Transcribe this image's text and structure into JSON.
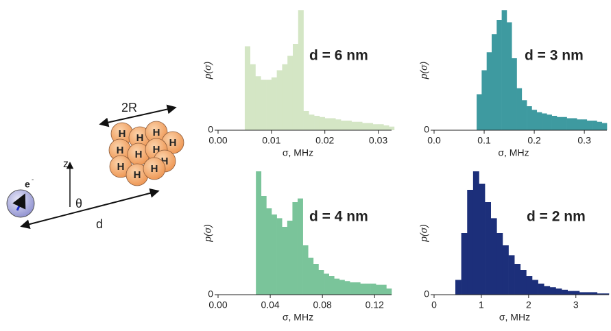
{
  "chart_data": [
    {
      "type": "histogram",
      "annotation": "d = 6 nm",
      "ylabel": "p(σ)",
      "xlabel": "σ, MHz",
      "color": "#d4e6c5",
      "bins": [
        0.005,
        0.006,
        0.007,
        0.008,
        0.009,
        0.01,
        0.011,
        0.012,
        0.013,
        0.014,
        0.015,
        0.016,
        0.017,
        0.018,
        0.019,
        0.02,
        0.021,
        0.022,
        0.023,
        0.024,
        0.025,
        0.026,
        0.027,
        0.028,
        0.029,
        0.03,
        0.031,
        0.032,
        0.033
      ],
      "values": [
        70,
        55,
        45,
        42,
        42,
        44,
        50,
        55,
        62,
        72,
        100,
        16,
        13,
        12,
        11,
        10,
        10,
        9,
        8,
        8,
        7,
        7,
        6,
        6,
        5,
        5,
        4,
        3
      ],
      "xlim": [
        0,
        0.0325
      ],
      "xticks": [
        {
          "value": 0,
          "label": "0.00"
        },
        0.01,
        0.02,
        0.03
      ],
      "ylim": [
        0,
        100
      ],
      "yticks": [
        0
      ]
    },
    {
      "type": "histogram",
      "annotation": "d = 3 nm",
      "ylabel": "p(σ)",
      "xlabel": "σ, MHz",
      "color": "#3e9aa0",
      "bins": [
        0.085,
        0.095,
        0.105,
        0.115,
        0.125,
        0.135,
        0.145,
        0.155,
        0.165,
        0.175,
        0.185,
        0.195,
        0.205,
        0.215,
        0.225,
        0.235,
        0.245,
        0.255,
        0.265,
        0.275,
        0.285,
        0.295,
        0.305,
        0.315,
        0.325,
        0.335,
        0.345
      ],
      "values": [
        30,
        50,
        65,
        80,
        92,
        100,
        90,
        60,
        35,
        25,
        20,
        17,
        15,
        14,
        13,
        12,
        11,
        11,
        10,
        10,
        9,
        9,
        8,
        8,
        7,
        6
      ],
      "xlim": [
        0,
        0.345
      ],
      "xticks": [
        {
          "value": 0,
          "label": "0.0"
        },
        0.1,
        0.2,
        0.3
      ],
      "ylim": [
        0,
        100
      ],
      "yticks": [
        0
      ]
    },
    {
      "type": "histogram",
      "annotation": "d = 4 nm",
      "ylabel": "p(σ)",
      "xlabel": "σ, MHz",
      "color": "#7ac49a",
      "bins": [
        0.029,
        0.033,
        0.037,
        0.041,
        0.045,
        0.049,
        0.053,
        0.057,
        0.061,
        0.065,
        0.069,
        0.073,
        0.077,
        0.081,
        0.085,
        0.089,
        0.093,
        0.097,
        0.101,
        0.105,
        0.109,
        0.113,
        0.117,
        0.121,
        0.125,
        0.129,
        0.133
      ],
      "values": [
        100,
        80,
        70,
        65,
        62,
        55,
        60,
        75,
        78,
        40,
        30,
        25,
        20,
        17,
        15,
        13,
        12,
        11,
        10,
        10,
        9,
        9,
        9,
        8,
        8,
        5
      ],
      "xlim": [
        0,
        0.133
      ],
      "xticks": [
        {
          "value": 0,
          "label": "0.00"
        },
        0.04,
        0.08,
        0.12
      ],
      "ylim": [
        0,
        100
      ],
      "yticks": [
        0
      ]
    },
    {
      "type": "histogram",
      "annotation": "d = 2 nm",
      "ylabel": "p(σ)",
      "xlabel": "σ, MHz",
      "color": "#1c2f7a",
      "bins": [
        0.45,
        0.575,
        0.7,
        0.825,
        0.95,
        1.075,
        1.2,
        1.325,
        1.45,
        1.575,
        1.7,
        1.825,
        1.95,
        2.075,
        2.2,
        2.325,
        2.45,
        2.575,
        2.7,
        2.825,
        2.95,
        3.075,
        3.2,
        3.325,
        3.45,
        3.575,
        3.7
      ],
      "values": [
        12,
        50,
        85,
        100,
        90,
        75,
        62,
        50,
        40,
        32,
        25,
        20,
        15,
        12,
        9,
        7,
        6,
        5,
        4,
        3,
        3,
        2,
        2,
        2,
        1,
        1
      ],
      "xlim": [
        0,
        3.7
      ],
      "xticks": [
        0,
        1,
        2,
        3
      ],
      "ylim": [
        0,
        100
      ],
      "yticks": [
        0
      ]
    }
  ],
  "diagram": {
    "size_label": "2R",
    "atom_label": "H",
    "electron": "e",
    "electron_charge": "-",
    "z_axis": "z",
    "angle": "θ",
    "distance": "d"
  }
}
